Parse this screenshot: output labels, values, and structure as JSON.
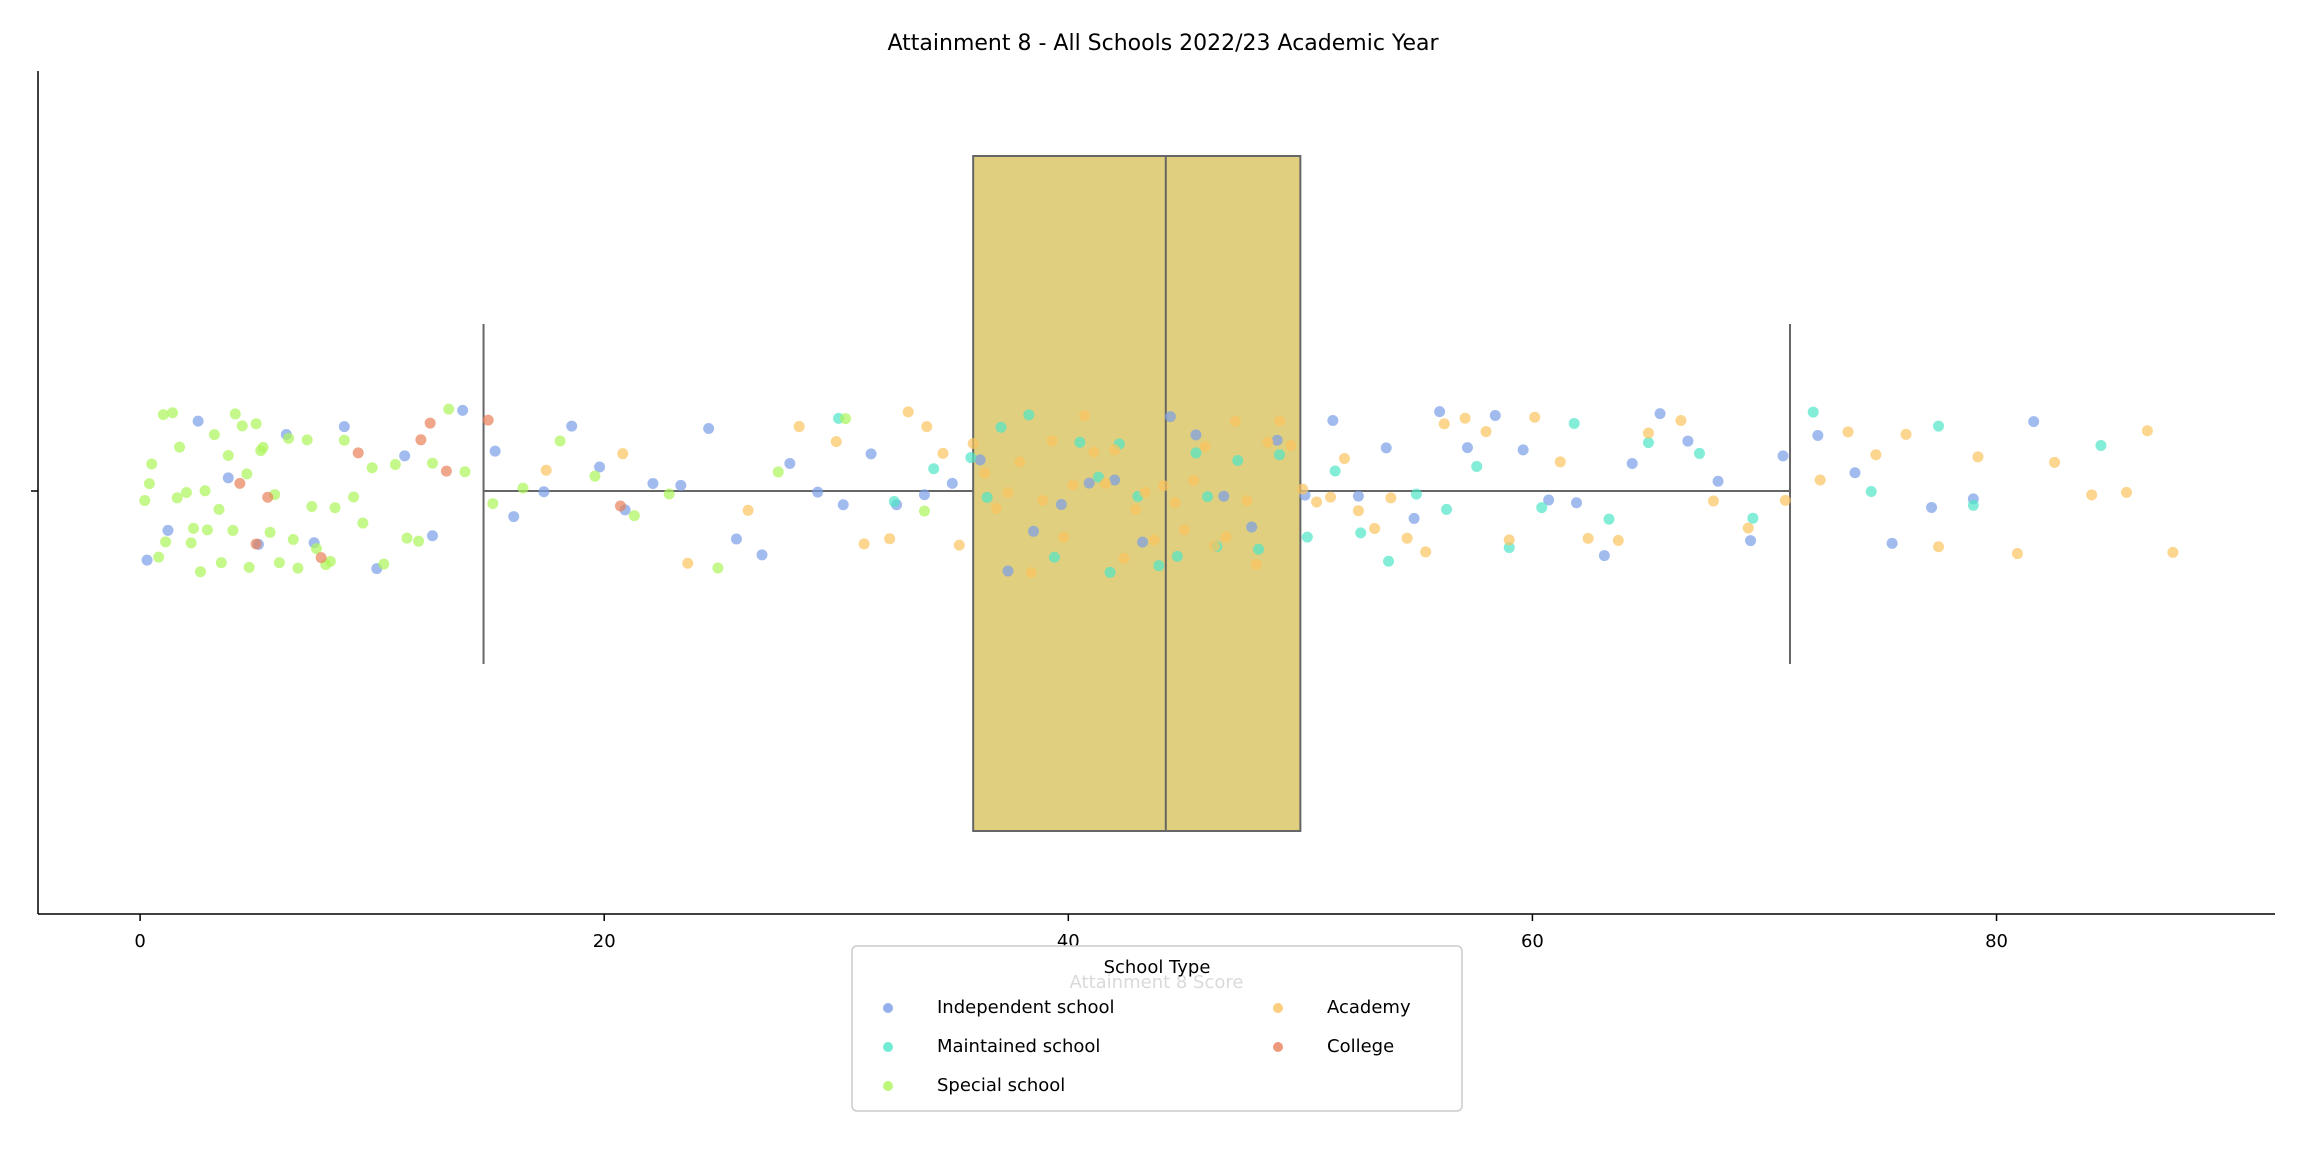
{
  "chart_data": {
    "type": "box",
    "title": "Attainment 8 - All Schools 2022/23 Academic Year",
    "xlabel": "Attainment 8 Score",
    "xlim": [
      -4.4,
      92
    ],
    "xticks": [
      0,
      20,
      40,
      60,
      80
    ],
    "box": {
      "whislo": 14.8,
      "q1": 35.9,
      "med": 44.2,
      "q3": 50.0,
      "whishi": 71.1,
      "color": "#dfcf7e",
      "edgecolor": "#666666"
    },
    "legend_title": "School Type",
    "series": [
      {
        "name": "Independent school",
        "color": "#7b9ee8",
        "values": [
          0.3,
          1.2,
          2.5,
          3.8,
          5.1,
          6.3,
          7.5,
          8.8,
          10.2,
          11.4,
          12.6,
          13.9,
          15.3,
          16.1,
          17.4,
          18.6,
          19.8,
          20.9,
          22.1,
          23.3,
          24.5,
          25.7,
          26.8,
          28.0,
          29.2,
          30.3,
          31.5,
          32.6,
          33.8,
          35.0,
          36.2,
          37.4,
          38.5,
          39.7,
          40.9,
          42.0,
          43.2,
          44.4,
          45.5,
          46.7,
          47.9,
          49.0,
          50.2,
          51.4,
          52.5,
          53.7,
          54.9,
          56.0,
          57.2,
          58.4,
          59.6,
          60.7,
          61.9,
          63.1,
          64.3,
          65.5,
          66.7,
          68.0,
          69.4,
          70.8,
          72.3,
          73.9,
          75.5,
          77.2,
          79.0,
          81.6
        ]
      },
      {
        "name": "Maintained school",
        "color": "#4ee6c8",
        "values": [
          30.1,
          32.5,
          34.2,
          35.8,
          36.5,
          37.1,
          38.3,
          39.4,
          40.5,
          41.3,
          41.8,
          42.2,
          43.0,
          43.9,
          44.7,
          45.5,
          46.0,
          46.4,
          47.3,
          48.2,
          49.1,
          50.3,
          51.5,
          52.6,
          53.8,
          55.0,
          56.3,
          57.6,
          59.0,
          60.4,
          61.8,
          63.3,
          65.0,
          67.2,
          69.5,
          72.1,
          74.6,
          77.5,
          79.0,
          84.5
        ]
      },
      {
        "name": "Special school",
        "color": "#adf55a",
        "values": [
          0.2,
          0.4,
          0.5,
          0.8,
          1.0,
          1.1,
          1.4,
          1.6,
          1.7,
          2.0,
          2.2,
          2.3,
          2.6,
          2.8,
          2.9,
          3.2,
          3.4,
          3.5,
          3.8,
          4.0,
          4.1,
          4.4,
          4.6,
          4.7,
          5.0,
          5.2,
          5.3,
          5.6,
          5.8,
          6.0,
          6.4,
          6.6,
          6.8,
          7.2,
          7.4,
          7.6,
          8.0,
          8.2,
          8.4,
          8.8,
          9.2,
          9.6,
          10.0,
          10.5,
          11.0,
          11.5,
          12.0,
          12.6,
          13.3,
          14.0,
          15.2,
          16.5,
          18.1,
          19.6,
          21.3,
          22.8,
          24.9,
          27.5,
          30.4,
          33.8
        ]
      },
      {
        "name": "Academy",
        "color": "#fbc35e",
        "values": [
          17.5,
          20.8,
          23.6,
          26.2,
          28.4,
          30.0,
          31.2,
          32.3,
          33.1,
          33.9,
          34.6,
          35.3,
          35.9,
          36.4,
          36.9,
          37.4,
          37.9,
          38.4,
          38.9,
          39.3,
          39.8,
          40.2,
          40.7,
          41.1,
          41.6,
          42.0,
          42.4,
          42.9,
          43.3,
          43.7,
          44.1,
          44.6,
          45.0,
          45.4,
          45.9,
          46.3,
          46.8,
          47.2,
          47.7,
          48.1,
          48.6,
          49.1,
          49.6,
          50.1,
          50.7,
          51.3,
          51.9,
          52.5,
          53.2,
          53.9,
          54.6,
          55.4,
          56.2,
          57.1,
          58.0,
          59.0,
          60.1,
          61.2,
          62.4,
          63.7,
          65.0,
          66.4,
          67.8,
          69.3,
          70.9,
          72.4,
          73.6,
          74.8,
          76.1,
          77.5,
          79.2,
          80.9,
          82.5,
          84.1,
          85.6,
          86.5,
          87.6
        ]
      },
      {
        "name": "College",
        "color": "#e8805a",
        "values": [
          4.3,
          5.0,
          5.5,
          7.8,
          9.4,
          12.1,
          12.5,
          13.2,
          15.0,
          20.7
        ]
      }
    ]
  }
}
